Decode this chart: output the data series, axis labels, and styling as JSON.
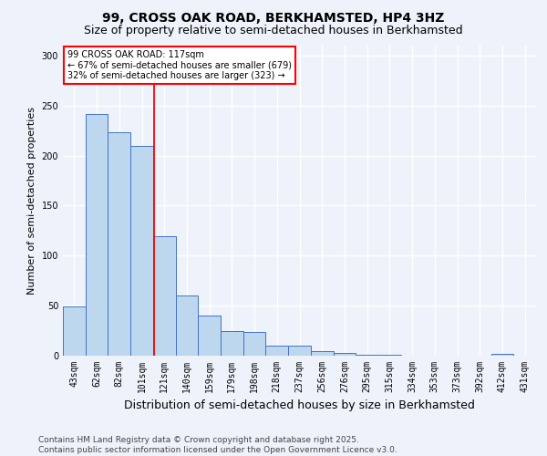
{
  "title": "99, CROSS OAK ROAD, BERKHAMSTED, HP4 3HZ",
  "subtitle": "Size of property relative to semi-detached houses in Berkhamsted",
  "xlabel": "Distribution of semi-detached houses by size in Berkhamsted",
  "ylabel": "Number of semi-detached properties",
  "categories": [
    "43sqm",
    "62sqm",
    "82sqm",
    "101sqm",
    "121sqm",
    "140sqm",
    "159sqm",
    "179sqm",
    "198sqm",
    "218sqm",
    "237sqm",
    "256sqm",
    "276sqm",
    "295sqm",
    "315sqm",
    "334sqm",
    "353sqm",
    "373sqm",
    "392sqm",
    "412sqm",
    "431sqm"
  ],
  "values": [
    49,
    242,
    223,
    210,
    119,
    60,
    40,
    25,
    24,
    10,
    10,
    5,
    3,
    1,
    1,
    0,
    0,
    0,
    0,
    2,
    0
  ],
  "bar_color": "#bdd7ee",
  "bar_edge_color": "#4472c4",
  "property_label": "99 CROSS OAK ROAD: 117sqm",
  "pct_smaller": 67,
  "count_smaller": 679,
  "pct_larger": 32,
  "count_larger": 323,
  "vline_color": "#ff0000",
  "vline_x": 3.55,
  "ylim": [
    0,
    310
  ],
  "yticks": [
    0,
    50,
    100,
    150,
    200,
    250,
    300
  ],
  "background_color": "#eef2fa",
  "grid_color": "#ffffff",
  "footer": "Contains HM Land Registry data © Crown copyright and database right 2025.\nContains public sector information licensed under the Open Government Licence v3.0.",
  "title_fontsize": 10,
  "subtitle_fontsize": 9,
  "xlabel_fontsize": 9,
  "ylabel_fontsize": 8,
  "tick_fontsize": 7,
  "footer_fontsize": 6.5
}
